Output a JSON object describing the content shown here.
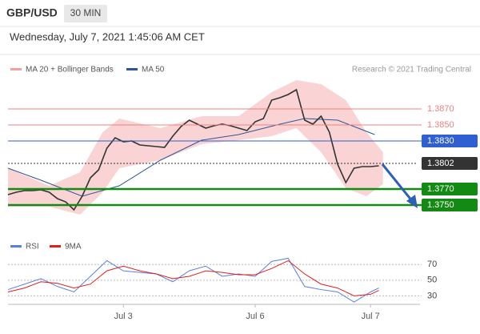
{
  "header": {
    "symbol": "GBP/USD",
    "interval": "30 MIN",
    "timestamp": "Wednesday, July 7, 2021 1:45:06 AM CET"
  },
  "chart_data": [
    {
      "type": "line",
      "source": "Research © 2021 Trading Central",
      "xlim": [
        0,
        100
      ],
      "ylim": [
        1.3726,
        1.3906
      ],
      "xticks": [
        {
          "value": 28,
          "label": "Jul 3"
        },
        {
          "value": 60,
          "label": "Jul 6"
        },
        {
          "value": 88,
          "label": "Jul 7"
        }
      ],
      "levels": [
        {
          "value": 1.387,
          "label": "1.3870",
          "color": "#f08080",
          "style": "thin"
        },
        {
          "value": 1.385,
          "label": "1.3850",
          "color": "#f08080",
          "style": "thin"
        },
        {
          "value": 1.383,
          "label": "1.3830",
          "color": "#2f5fd0",
          "style": "box"
        },
        {
          "value": 1.3802,
          "label": "1.3802",
          "color": "#333333",
          "style": "dotted"
        },
        {
          "value": 1.377,
          "label": "1.3770",
          "color": "#138a13",
          "style": "thick"
        },
        {
          "value": 1.375,
          "label": "1.3750",
          "color": "#138a13",
          "style": "thick"
        }
      ],
      "series": [
        {
          "name": "MA 20 + Bollinger Bands",
          "color": "#f4a0a0",
          "x": [
            0,
            10,
            17.5,
            23,
            27,
            37,
            47,
            56,
            64,
            70,
            76,
            82,
            87,
            91
          ],
          "upper": [
            1.3796,
            1.3774,
            1.3791,
            1.3841,
            1.3858,
            1.3846,
            1.3861,
            1.3861,
            1.3891,
            1.3906,
            1.3901,
            1.3881,
            1.3841,
            1.3816
          ],
          "lower": [
            1.3748,
            1.3748,
            1.3738,
            1.3766,
            1.3796,
            1.3806,
            1.3826,
            1.3831,
            1.3836,
            1.3846,
            1.3816,
            1.3771,
            1.3761,
            1.3776
          ]
        },
        {
          "name": "MA 50",
          "color": "#2f5597",
          "x": [
            0,
            8,
            18,
            27,
            37,
            47,
            56,
            66,
            72,
            80,
            89
          ],
          "values": [
            1.3796,
            1.3781,
            1.3761,
            1.3774,
            1.3806,
            1.3831,
            1.3838,
            1.3851,
            1.3858,
            1.3856,
            1.3838
          ]
        },
        {
          "color": "#333333",
          "x": [
            0,
            2,
            4,
            6,
            8,
            10,
            12,
            14,
            16,
            18,
            20,
            22,
            24,
            26,
            28,
            30,
            32,
            34,
            36,
            38,
            40,
            42,
            44,
            46,
            48,
            50,
            52,
            54,
            56,
            58,
            60,
            62,
            64,
            66,
            68,
            70,
            72,
            74,
            76,
            78,
            80,
            82,
            84,
            86,
            88,
            90
          ],
          "values": [
            1.3763,
            1.3766,
            1.3768,
            1.3768,
            1.3769,
            1.3766,
            1.3758,
            1.3754,
            1.3744,
            1.3761,
            1.3784,
            1.3794,
            1.3821,
            1.3834,
            1.3829,
            1.383,
            1.3825,
            1.3824,
            1.3823,
            1.3822,
            1.3836,
            1.3848,
            1.3856,
            1.3851,
            1.3846,
            1.3849,
            1.3851,
            1.3849,
            1.3846,
            1.3843,
            1.3854,
            1.3858,
            1.3881,
            1.3884,
            1.3888,
            1.3894,
            1.3856,
            1.3851,
            1.3861,
            1.3841,
            1.3801,
            1.3778,
            1.3796,
            1.3798,
            1.3798,
            1.3799
          ]
        }
      ]
    },
    {
      "type": "line",
      "xlim": [
        0,
        100
      ],
      "ylim": [
        14,
        100
      ],
      "yticks": [
        30,
        50,
        70
      ],
      "series": [
        {
          "name": "RSI",
          "color": "#5b7fe0",
          "x": [
            0,
            4,
            8,
            12,
            16,
            20,
            24,
            28,
            32,
            36,
            40,
            44,
            48,
            52,
            56,
            60,
            64,
            68,
            72,
            76,
            80,
            84,
            88,
            90
          ],
          "values": [
            38,
            45,
            52,
            42,
            35,
            55,
            75,
            62,
            60,
            58,
            48,
            62,
            68,
            55,
            58,
            55,
            74,
            78,
            42,
            38,
            35,
            22,
            35,
            40
          ]
        },
        {
          "name": "9MA",
          "color": "#e02020",
          "x": [
            0,
            4,
            8,
            12,
            16,
            20,
            24,
            28,
            32,
            36,
            40,
            44,
            48,
            52,
            56,
            60,
            64,
            68,
            72,
            76,
            80,
            84,
            88,
            90
          ],
          "values": [
            35,
            40,
            48,
            46,
            40,
            45,
            62,
            68,
            62,
            58,
            52,
            55,
            62,
            60,
            57,
            57,
            65,
            75,
            58,
            45,
            40,
            30,
            32,
            37
          ]
        }
      ]
    }
  ]
}
